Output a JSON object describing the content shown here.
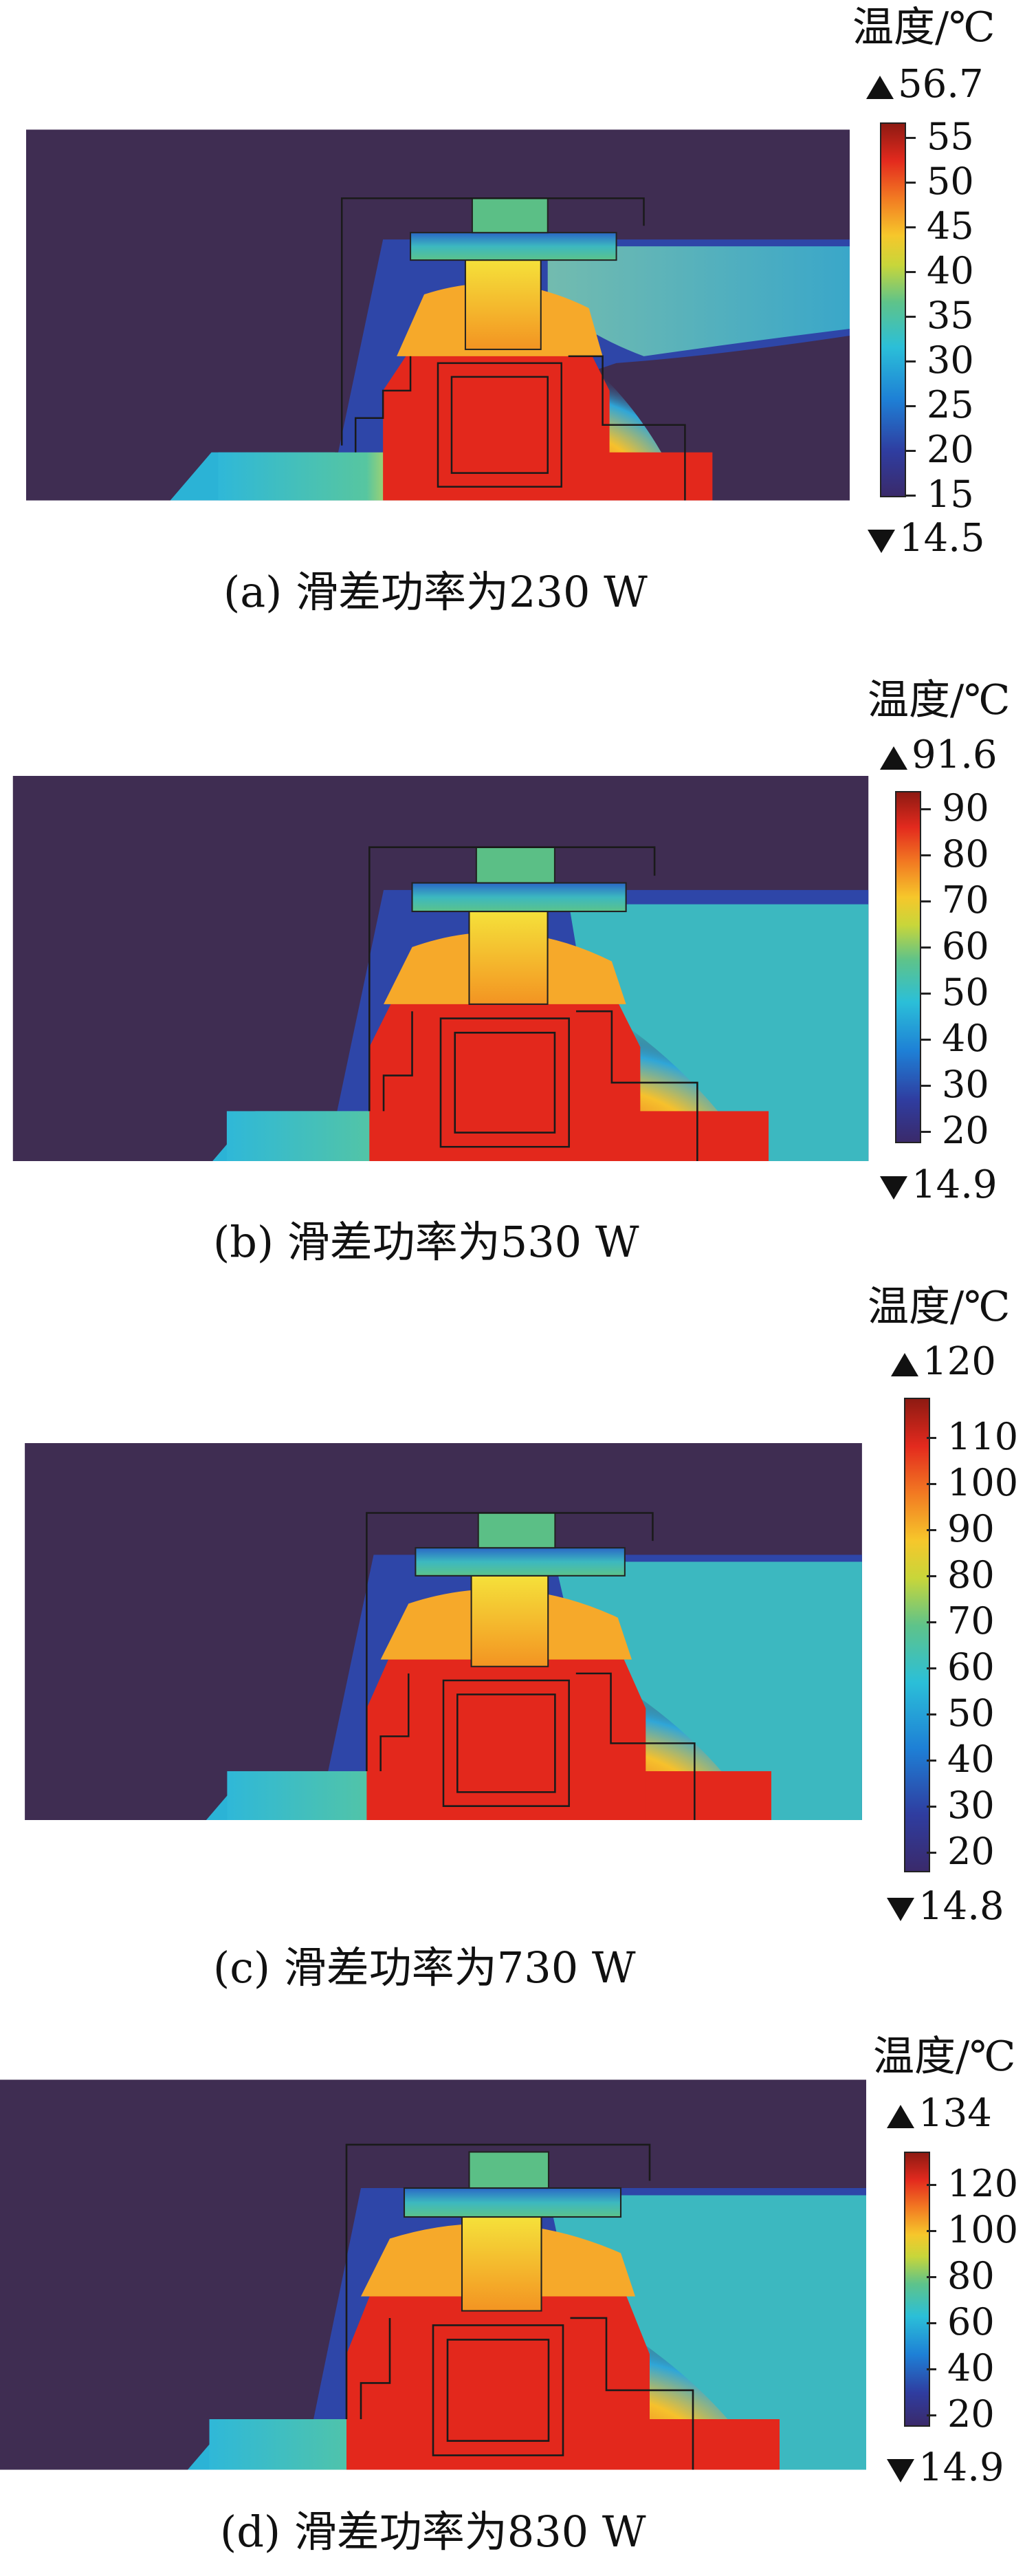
{
  "colorbar_unit": "温度/℃",
  "panels": [
    {
      "id": "a",
      "caption": "(a)  滑差功率为230 W",
      "max": "56.7",
      "min": "14.5",
      "ticks": [
        "55",
        "50",
        "45",
        "40",
        "35",
        "30",
        "25",
        "20",
        "15"
      ]
    },
    {
      "id": "b",
      "caption": "(b)  滑差功率为530 W",
      "max": "91.6",
      "min": "14.9",
      "ticks": [
        "90",
        "80",
        "70",
        "60",
        "50",
        "40",
        "30",
        "20"
      ]
    },
    {
      "id": "c",
      "caption": "(c)  滑差功率为730 W",
      "max": "120",
      "min": "14.8",
      "ticks": [
        "110",
        "100",
        "90",
        "80",
        "70",
        "60",
        "50",
        "40",
        "30",
        "20"
      ]
    },
    {
      "id": "d",
      "caption": "(d)  滑差功率为830 W",
      "max": "134",
      "min": "14.9",
      "ticks": [
        "120",
        "100",
        "80",
        "60",
        "40",
        "20"
      ]
    }
  ],
  "colors": {
    "background_field": "#3f2d52",
    "hot": "#e3281c",
    "warm": "#f7d83a",
    "cool": "#2fb8c8",
    "cold": "#2d3ea6"
  }
}
